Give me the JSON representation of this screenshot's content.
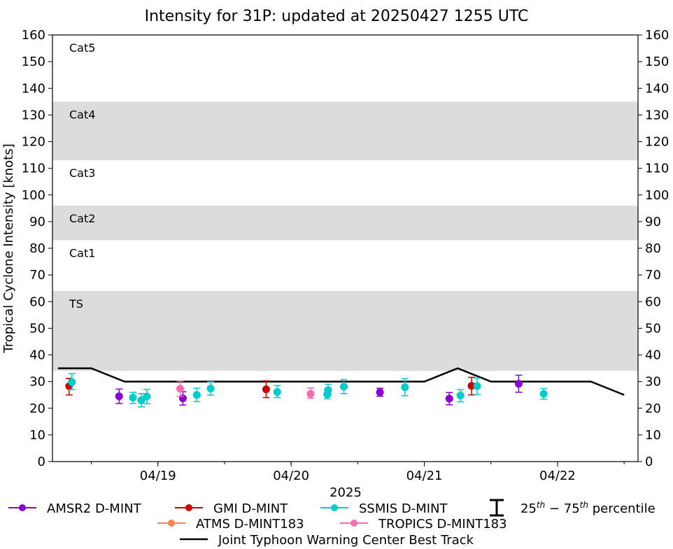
{
  "chart_data": {
    "type": "scatter",
    "title": "Intensity for 31P: updated at 20250427 1255 UTC",
    "xlabel": "2025",
    "ylabel": "Tropical Cyclone Intensity [knots]",
    "ylim": [
      0,
      160
    ],
    "xlim": [
      "04/18 05:00",
      "04/22 14:30"
    ],
    "yticks": [
      0,
      10,
      20,
      30,
      40,
      50,
      60,
      70,
      80,
      90,
      100,
      110,
      120,
      130,
      140,
      150,
      160
    ],
    "xticks": [
      {
        "label": "04/19",
        "x": "04/19 00:00"
      },
      {
        "label": "04/20",
        "x": "04/20 00:00"
      },
      {
        "label": "04/21",
        "x": "04/21 00:00"
      },
      {
        "label": "04/22",
        "x": "04/22 00:00"
      }
    ],
    "bands": [
      {
        "label": "TS",
        "y0": 34,
        "y1": 64,
        "shaded": true
      },
      {
        "label": "Cat1",
        "y0": 64,
        "y1": 83,
        "shaded": false
      },
      {
        "label": "Cat2",
        "y0": 83,
        "y1": 96,
        "shaded": true
      },
      {
        "label": "Cat3",
        "y0": 96,
        "y1": 113,
        "shaded": false
      },
      {
        "label": "Cat4",
        "y0": 113,
        "y1": 135,
        "shaded": true
      },
      {
        "label": "Cat5",
        "y0": 135,
        "y1": 160,
        "shaded": false
      }
    ],
    "series": [
      {
        "name": "AMSR2 D-MINT",
        "color": "#8a00d4",
        "points": [
          {
            "x": "04/18 17:00",
            "y": 24.5,
            "lo": 21.8,
            "hi": 27.2
          },
          {
            "x": "04/19 04:30",
            "y": 23.7,
            "lo": 21.2,
            "hi": 26.2
          },
          {
            "x": "04/20 16:00",
            "y": 26.0,
            "lo": 24.5,
            "hi": 27.5
          },
          {
            "x": "04/21 04:30",
            "y": 23.6,
            "lo": 21.3,
            "hi": 25.9
          },
          {
            "x": "04/21 17:00",
            "y": 29.2,
            "lo": 26.0,
            "hi": 32.4
          }
        ]
      },
      {
        "name": "GMI D-MINT",
        "color": "#cc0000",
        "points": [
          {
            "x": "04/18 08:00",
            "y": 28.3,
            "lo": 25.0,
            "hi": 31.2
          },
          {
            "x": "04/19 19:30",
            "y": 27.1,
            "lo": 24.0,
            "hi": 30.3
          },
          {
            "x": "04/21 08:30",
            "y": 28.4,
            "lo": 25.0,
            "hi": 31.6
          }
        ]
      },
      {
        "name": "SSMIS D-MINT",
        "color": "#00cccc",
        "points": [
          {
            "x": "04/18 08:30",
            "y": 29.8,
            "lo": 27.0,
            "hi": 33.0
          },
          {
            "x": "04/18 19:30",
            "y": 24.0,
            "lo": 21.8,
            "hi": 26.0
          },
          {
            "x": "04/18 21:00",
            "y": 23.0,
            "lo": 20.5,
            "hi": 25.5
          },
          {
            "x": "04/18 22:00",
            "y": 24.4,
            "lo": 21.7,
            "hi": 27.1
          },
          {
            "x": "04/19 07:00",
            "y": 25.0,
            "lo": 22.5,
            "hi": 27.5
          },
          {
            "x": "04/19 09:30",
            "y": 27.4,
            "lo": 24.9,
            "hi": 29.9
          },
          {
            "x": "04/19 21:30",
            "y": 26.1,
            "lo": 24.0,
            "hi": 28.5
          },
          {
            "x": "04/20 06:30",
            "y": 25.2,
            "lo": 23.5,
            "hi": 27.0
          },
          {
            "x": "04/20 06:40",
            "y": 26.8,
            "lo": 24.7,
            "hi": 29.0
          },
          {
            "x": "04/20 09:30",
            "y": 28.1,
            "lo": 25.5,
            "hi": 30.8
          },
          {
            "x": "04/20 20:30",
            "y": 27.9,
            "lo": 24.7,
            "hi": 31.1
          },
          {
            "x": "04/21 06:30",
            "y": 24.8,
            "lo": 22.4,
            "hi": 27.0
          },
          {
            "x": "04/21 09:30",
            "y": 28.3,
            "lo": 25.2,
            "hi": 31.3
          },
          {
            "x": "04/21 21:30",
            "y": 25.4,
            "lo": 23.4,
            "hi": 27.4
          }
        ]
      },
      {
        "name": "ATMS D-MINT183",
        "color": "#ff8050",
        "points": []
      },
      {
        "name": "TROPICS D-MINT183",
        "color": "#ff69b4",
        "points": [
          {
            "x": "04/19 04:00",
            "y": 27.3,
            "lo": 24.5,
            "hi": 30.2
          },
          {
            "x": "04/20 03:30",
            "y": 25.4,
            "lo": 23.8,
            "hi": 27.6
          }
        ]
      }
    ],
    "best_track": {
      "name": "Joint Typhoon Warning Center Best Track",
      "color": "#000000",
      "x": [
        "04/18 06:00",
        "04/18 12:00",
        "04/18 18:00",
        "04/19 00:00",
        "04/19 06:00",
        "04/19 12:00",
        "04/19 18:00",
        "04/20 00:00",
        "04/20 06:00",
        "04/20 12:00",
        "04/20 18:00",
        "04/21 00:00",
        "04/21 06:00",
        "04/21 12:00",
        "04/21 18:00",
        "04/22 00:00",
        "04/22 06:00",
        "04/22 12:00"
      ],
      "y": [
        35,
        35,
        30,
        30,
        30,
        30,
        30,
        30,
        30,
        30,
        30,
        30,
        35,
        30,
        30,
        30,
        30,
        25
      ]
    },
    "legend": {
      "placement": "bottom",
      "percentile_label_base": "25",
      "percentile_label_sup1": "th",
      "percentile_label_mid": " − 75",
      "percentile_label_sup2": "th",
      "percentile_label_tail": " percentile"
    }
  }
}
